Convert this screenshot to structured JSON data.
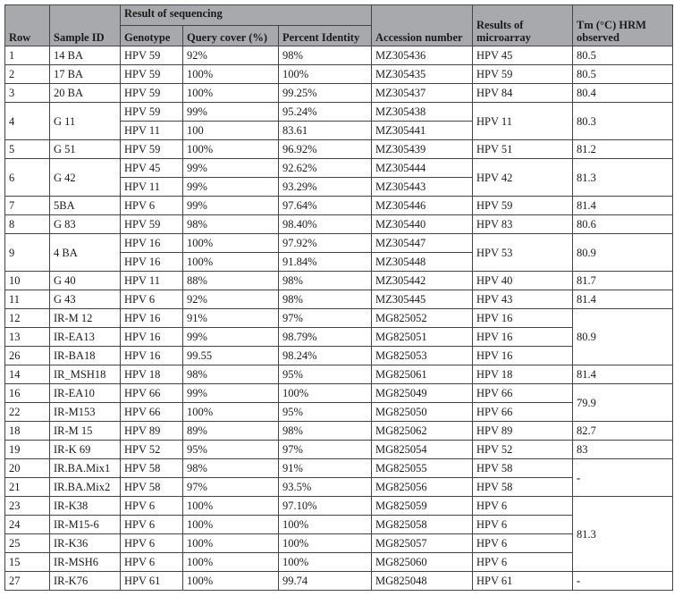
{
  "header": {
    "row": "Row",
    "sample_id": "Sample ID",
    "group": "Result of sequencing",
    "genotype": "Genotype",
    "query_cover": "Query cover (%)",
    "percent_identity": "Percent Identity",
    "accession": "Accession number",
    "microarray": "Results of microarray",
    "tm": "Tm (°C) HRM observed"
  },
  "colors": {
    "header_bg": "#a7a9ac",
    "border": "#444444"
  },
  "table": {
    "rows": [
      [
        "1",
        "14 BA",
        "HPV 59",
        "92%",
        "98%",
        "MZ305436",
        "HPV 45",
        "80.5"
      ],
      [
        "2",
        "17 BA",
        "HPV 59",
        "100%",
        "100%",
        "MZ305435",
        "HPV 59",
        "80.5"
      ],
      [
        "3",
        "20 BA",
        "HPV 59",
        "100%",
        "99.25%",
        "MZ305437",
        "HPV 84",
        "80.4"
      ],
      [
        "4",
        "G 11",
        "HPV 59",
        "99%",
        "95.24%",
        "MZ305438",
        "HPV 11",
        "80.3"
      ],
      [
        null,
        null,
        "HPV 11",
        "100",
        "83.61",
        "MZ305441",
        null,
        null
      ],
      [
        "5",
        "G 51",
        "HPV 59",
        "100%",
        "96.92%",
        "MZ305439",
        "HPV 51",
        "81.2"
      ],
      [
        "6",
        "G 42",
        "HPV 45",
        "99%",
        "92.62%",
        "MZ305444",
        "HPV 42",
        "81.3"
      ],
      [
        null,
        null,
        "HPV 11",
        "99%",
        "93.29%",
        "MZ305443",
        null,
        null
      ],
      [
        "7",
        "5BA",
        "HPV 6",
        "99%",
        "97.64%",
        "MZ305446",
        "HPV 59",
        "81.4"
      ],
      [
        "8",
        "G 83",
        "HPV 59",
        "98%",
        "98.40%",
        "MZ305440",
        "HPV 83",
        "80.6"
      ],
      [
        "9",
        "4 BA",
        "HPV 16",
        "100%",
        "97.92%",
        "MZ305447",
        "HPV 53",
        "80.9"
      ],
      [
        null,
        null,
        "HPV 16",
        "100%",
        "91.84%",
        "MZ305448",
        null,
        null
      ],
      [
        "10",
        "G 40",
        "HPV 11",
        "88%",
        "98%",
        "MZ305442",
        "HPV 40",
        "81.7"
      ],
      [
        "11",
        "G 43",
        "HPV 6",
        "92%",
        "98%",
        "MZ305445",
        "HPV 43",
        "81.4"
      ],
      [
        "12",
        "IR-M 12",
        "HPV 16",
        "91%",
        "97%",
        "MG825052",
        "HPV 16",
        "80.9"
      ],
      [
        "13",
        "IR-EA13",
        "HPV 16",
        "99%",
        "98.79%",
        "MG825051",
        "HPV 16",
        null
      ],
      [
        "26",
        "IR-BA18",
        "HPV 16",
        "99.55",
        "98.24%",
        "MG825053",
        "HPV 16",
        null
      ],
      [
        "14",
        "IR_MSH18",
        "HPV 18",
        "98%",
        "95%",
        "MG825061",
        "HPV 18",
        "81.4"
      ],
      [
        "16",
        "IR-EA10",
        "HPV 66",
        "99%",
        "100%",
        "MG825049",
        "HPV 66",
        "79.9"
      ],
      [
        "22",
        "IR-M153",
        "HPV 66",
        "100%",
        "95%",
        "MG825050",
        "HPV 66",
        null
      ],
      [
        "18",
        "IR-M 15",
        "HPV 89",
        "89%",
        "98%",
        "MG825062",
        "HPV 89",
        "82.7"
      ],
      [
        "19",
        "IR-K 69",
        "HPV 52",
        "95%",
        "97%",
        "MG825054",
        "HPV 52",
        "83"
      ],
      [
        "20",
        "IR.BA.Mix1",
        "HPV 58",
        "98%",
        "91%",
        "MG825055",
        "HPV 58",
        "-"
      ],
      [
        "21",
        "IR.BA.Mix2",
        "HPV 58",
        "97%",
        "93.5%",
        "MG825056",
        "HPV 58",
        null
      ],
      [
        "23",
        "IR-K38",
        "HPV 6",
        "100%",
        "97.10%",
        "MG825059",
        "HPV 6",
        "81.3"
      ],
      [
        "24",
        "IR-M15-6",
        "HPV 6",
        "100%",
        "100%",
        "MG825058",
        "HPV 6",
        null
      ],
      [
        "25",
        "IR-K36",
        "HPV 6",
        "100%",
        "100%",
        "MG825057",
        "HPV 6",
        null
      ],
      [
        "15",
        "IR-MSH6",
        "HPV 6",
        "100%",
        "100%",
        "MG825060",
        "HPV 6",
        null
      ],
      [
        "27",
        "IR-K76",
        "HPV 61",
        "100%",
        "99.74",
        "MG825048",
        "HPV 61",
        "-"
      ]
    ]
  }
}
